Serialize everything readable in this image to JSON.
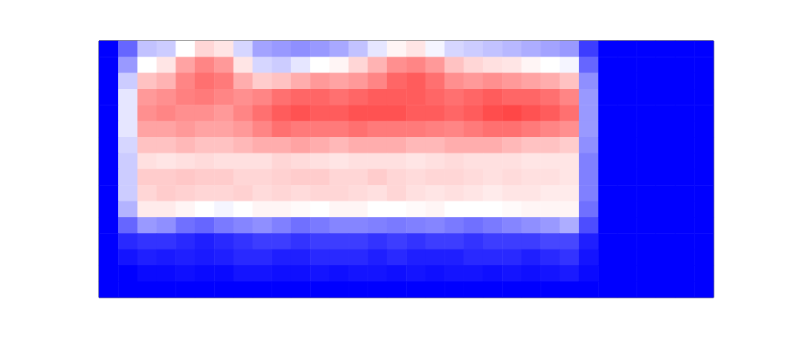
{
  "chart_data": {
    "type": "heatmap",
    "tick_labels": false,
    "zlim": [
      0,
      100
    ],
    "cells": [
      [
        0,
        20,
        38,
        40,
        50,
        58,
        55,
        42,
        32,
        30,
        28,
        30,
        33,
        38,
        45,
        52,
        55,
        48,
        42,
        40,
        38,
        36,
        34,
        32,
        30,
        12,
        0,
        0,
        0,
        0,
        0,
        0
      ],
      [
        0,
        30,
        50,
        55,
        68,
        74,
        70,
        55,
        42,
        40,
        45,
        50,
        52,
        58,
        65,
        72,
        74,
        70,
        62,
        58,
        56,
        55,
        52,
        50,
        48,
        20,
        0,
        0,
        0,
        0,
        0,
        0
      ],
      [
        0,
        40,
        62,
        65,
        74,
        78,
        76,
        66,
        60,
        62,
        66,
        70,
        68,
        70,
        74,
        80,
        82,
        78,
        72,
        70,
        72,
        70,
        68,
        66,
        62,
        28,
        0,
        0,
        0,
        0,
        0,
        0
      ],
      [
        0,
        45,
        70,
        72,
        75,
        76,
        74,
        72,
        74,
        78,
        80,
        80,
        78,
        80,
        82,
        82,
        82,
        80,
        78,
        80,
        82,
        80,
        80,
        78,
        74,
        30,
        0,
        0,
        0,
        0,
        0,
        0
      ],
      [
        0,
        45,
        72,
        74,
        72,
        72,
        70,
        74,
        78,
        82,
        84,
        82,
        82,
        84,
        84,
        84,
        82,
        82,
        80,
        82,
        85,
        86,
        84,
        82,
        78,
        30,
        0,
        0,
        0,
        0,
        0,
        0
      ],
      [
        0,
        45,
        68,
        68,
        70,
        68,
        68,
        70,
        74,
        78,
        76,
        76,
        76,
        78,
        76,
        76,
        76,
        75,
        74,
        76,
        78,
        78,
        76,
        74,
        72,
        30,
        0,
        0,
        0,
        0,
        0,
        0
      ],
      [
        0,
        42,
        62,
        62,
        64,
        62,
        62,
        64,
        66,
        66,
        68,
        66,
        64,
        66,
        66,
        66,
        64,
        64,
        66,
        66,
        66,
        64,
        62,
        62,
        60,
        28,
        0,
        0,
        0,
        0,
        0,
        0
      ],
      [
        0,
        40,
        56,
        55,
        56,
        57,
        56,
        56,
        56,
        58,
        57,
        56,
        55,
        56,
        56,
        56,
        55,
        56,
        57,
        56,
        56,
        56,
        55,
        55,
        55,
        25,
        0,
        0,
        0,
        0,
        0,
        0
      ],
      [
        0,
        40,
        60,
        60,
        61,
        60,
        60,
        58,
        58,
        59,
        60,
        60,
        58,
        58,
        60,
        58,
        57,
        58,
        58,
        57,
        56,
        57,
        56,
        56,
        55,
        25,
        0,
        0,
        0,
        0,
        0,
        0
      ],
      [
        0,
        40,
        58,
        60,
        59,
        58,
        58,
        59,
        57,
        58,
        57,
        58,
        58,
        57,
        56,
        58,
        56,
        55,
        56,
        55,
        54,
        55,
        55,
        54,
        54,
        25,
        0,
        0,
        0,
        0,
        0,
        0
      ],
      [
        0,
        35,
        54,
        54,
        52,
        50,
        48,
        50,
        52,
        52,
        51,
        50,
        52,
        52,
        50,
        50,
        51,
        52,
        50,
        50,
        50,
        51,
        52,
        52,
        52,
        22,
        0,
        0,
        0,
        0,
        0,
        0
      ],
      [
        0,
        20,
        30,
        28,
        22,
        20,
        24,
        26,
        28,
        25,
        22,
        24,
        26,
        26,
        25,
        24,
        25,
        26,
        24,
        22,
        24,
        26,
        28,
        30,
        34,
        15,
        0,
        0,
        0,
        0,
        0,
        0
      ],
      [
        0,
        8,
        10,
        10,
        8,
        6,
        8,
        10,
        12,
        12,
        10,
        12,
        12,
        12,
        10,
        12,
        10,
        12,
        12,
        10,
        12,
        12,
        12,
        14,
        14,
        6,
        0,
        0,
        0,
        0,
        0,
        0
      ],
      [
        0,
        4,
        6,
        5,
        6,
        5,
        6,
        8,
        8,
        6,
        6,
        8,
        8,
        8,
        6,
        8,
        6,
        6,
        6,
        8,
        8,
        8,
        6,
        8,
        10,
        4,
        0,
        0,
        0,
        0,
        0,
        0
      ],
      [
        0,
        0,
        2,
        2,
        3,
        2,
        2,
        4,
        4,
        3,
        3,
        4,
        3,
        4,
        4,
        3,
        4,
        3,
        4,
        4,
        3,
        4,
        3,
        4,
        5,
        2,
        0,
        0,
        0,
        0,
        0,
        0
      ],
      [
        0,
        0,
        0,
        0,
        0,
        0,
        0,
        0,
        0,
        0,
        0,
        0,
        0,
        0,
        0,
        0,
        0,
        0,
        0,
        0,
        0,
        0,
        0,
        0,
        0,
        0,
        0,
        0,
        0,
        0,
        0,
        0
      ]
    ]
  }
}
